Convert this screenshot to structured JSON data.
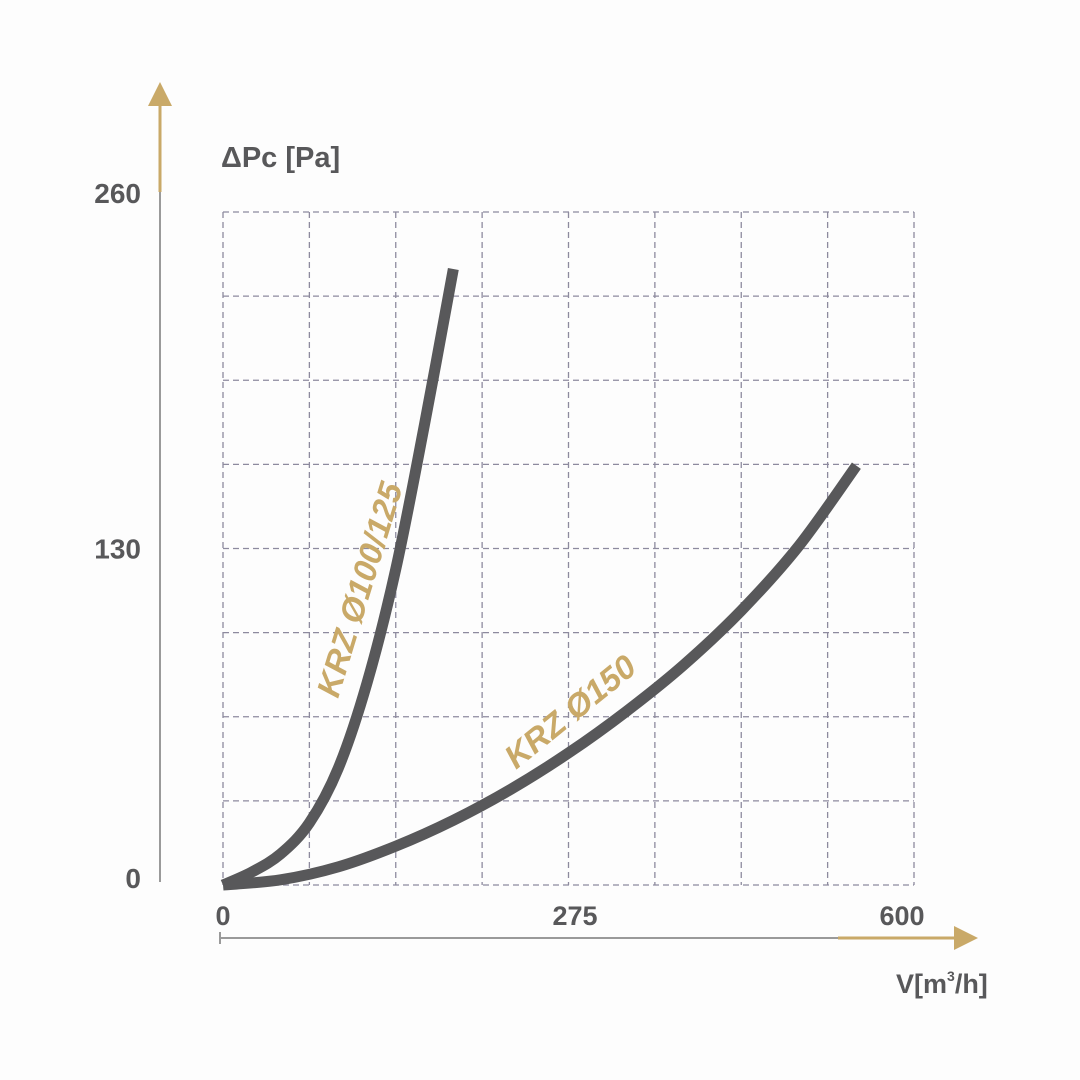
{
  "chart_data": {
    "type": "line",
    "ylabel": "ΔPc [Pa]",
    "xlabel_base": "V[m",
    "xlabel_sup": "3",
    "xlabel_tail": "/h]",
    "x_ticks": [
      {
        "value": 0,
        "label": "0"
      },
      {
        "value": 275,
        "label": "275"
      },
      {
        "value": 600,
        "label": "600"
      }
    ],
    "y_ticks": [
      {
        "value": 0,
        "label": "0"
      },
      {
        "value": 130,
        "label": "130"
      },
      {
        "value": 260,
        "label": "260"
      }
    ],
    "grid": true,
    "series": [
      {
        "name": "KRZ Ø100/125",
        "points": [
          [
            0,
            0
          ],
          [
            25,
            5
          ],
          [
            50,
            12
          ],
          [
            75,
            24
          ],
          [
            100,
            45
          ],
          [
            125,
            78
          ],
          [
            150,
            122
          ],
          [
            175,
            178
          ],
          [
            200,
            238
          ]
        ]
      },
      {
        "name": "KRZ Ø150",
        "points": [
          [
            0,
            0
          ],
          [
            50,
            2
          ],
          [
            100,
            7
          ],
          [
            150,
            15
          ],
          [
            200,
            25
          ],
          [
            250,
            37
          ],
          [
            300,
            51
          ],
          [
            350,
            67
          ],
          [
            400,
            85
          ],
          [
            450,
            106
          ],
          [
            500,
            131
          ],
          [
            550,
            162
          ]
        ]
      }
    ],
    "colors": {
      "curve": "#58585a",
      "accent": "#c9a968",
      "grid": "#8d8a9e",
      "text": "#58585a"
    }
  }
}
